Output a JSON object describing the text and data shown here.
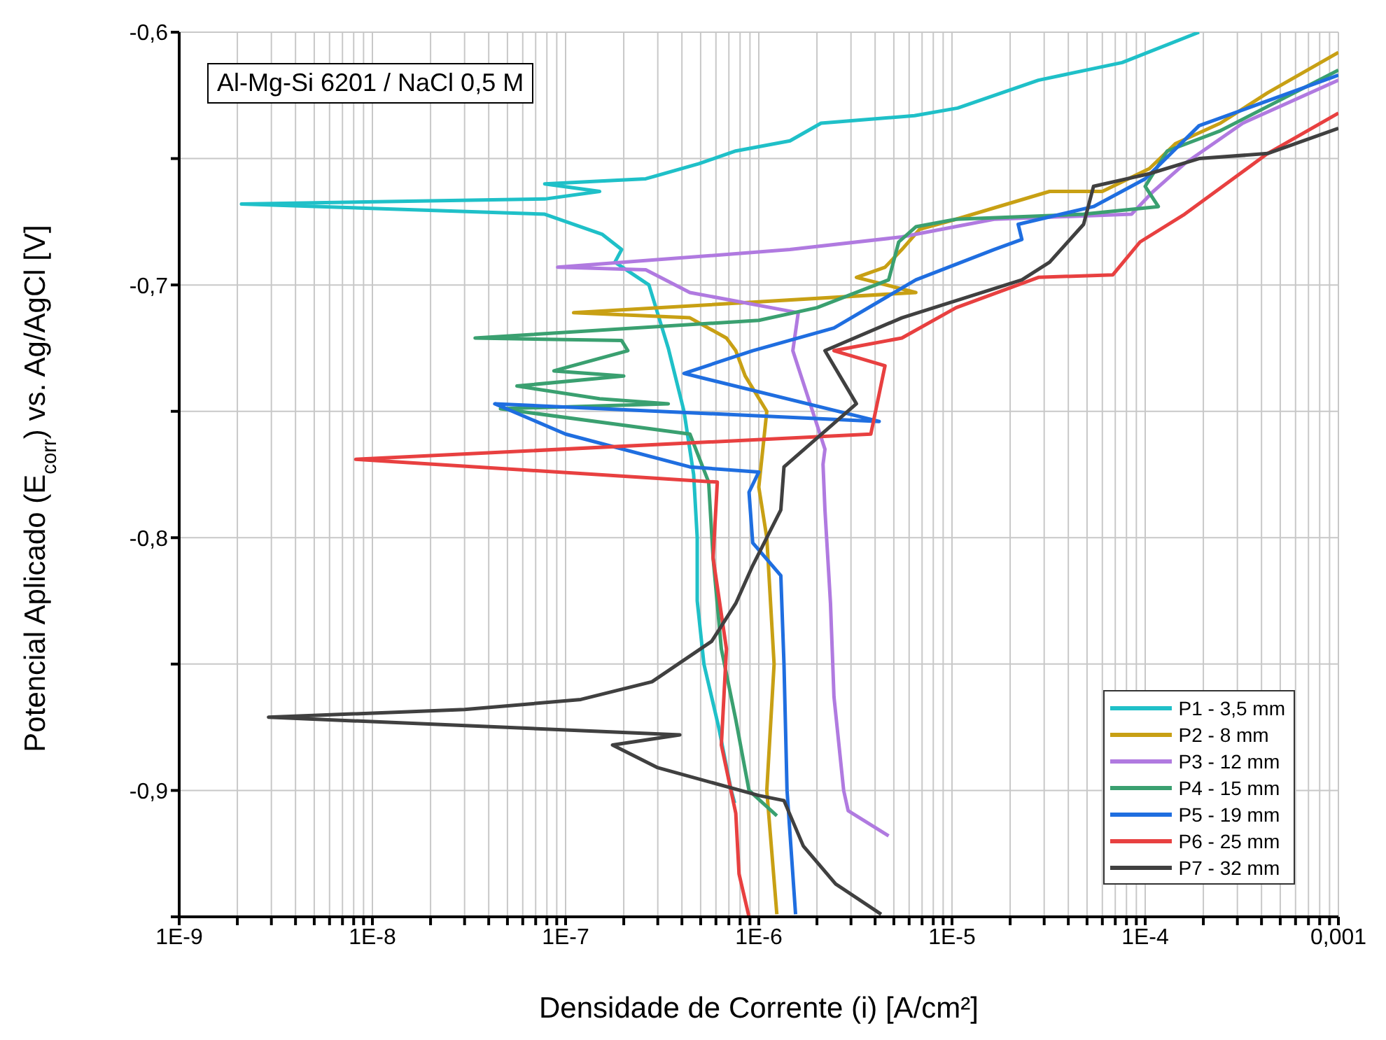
{
  "chart_data": {
    "type": "line",
    "xlabel": "Densidade de Corrente (i) [A/cm²]",
    "ylabel": "Potencial Aplicado (E$_{corr}$) vs. Ag/AgCl [V]",
    "annotations": [
      "Al-Mg-Si 6201 / NaCl 0,5 M"
    ],
    "log": "x",
    "grid": true,
    "legend": "bottom right",
    "marker": "none",
    "line_style": "solid",
    "xlim": [
      1e-09,
      0.001
    ],
    "ylim": [
      -0.95,
      -0.6
    ],
    "xticks": [
      {
        "value": 1e-09,
        "label": "1E-9"
      },
      {
        "value": 2e-09,
        "label": null
      },
      {
        "value": 3e-09,
        "label": null
      },
      {
        "value": 4e-09,
        "label": null
      },
      {
        "value": 5e-09,
        "label": null
      },
      {
        "value": 6e-09,
        "label": null
      },
      {
        "value": 7e-09,
        "label": null
      },
      {
        "value": 8e-09,
        "label": null
      },
      {
        "value": 9e-09,
        "label": null
      },
      {
        "value": 1e-08,
        "label": "1E-8"
      },
      {
        "value": 2e-08,
        "label": null
      },
      {
        "value": 3e-08,
        "label": null
      },
      {
        "value": 4e-08,
        "label": null
      },
      {
        "value": 5e-08,
        "label": null
      },
      {
        "value": 6e-08,
        "label": null
      },
      {
        "value": 7e-08,
        "label": null
      },
      {
        "value": 8e-08,
        "label": null
      },
      {
        "value": 9e-08,
        "label": null
      },
      {
        "value": 1e-07,
        "label": "1E-7"
      },
      {
        "value": 2e-07,
        "label": null
      },
      {
        "value": 3e-07,
        "label": null
      },
      {
        "value": 4e-07,
        "label": null
      },
      {
        "value": 5e-07,
        "label": null
      },
      {
        "value": 6e-07,
        "label": null
      },
      {
        "value": 7e-07,
        "label": null
      },
      {
        "value": 8e-07,
        "label": null
      },
      {
        "value": 9e-07,
        "label": null
      },
      {
        "value": 1e-06,
        "label": "1E-6"
      },
      {
        "value": 2e-06,
        "label": null
      },
      {
        "value": 3e-06,
        "label": null
      },
      {
        "value": 4e-06,
        "label": null
      },
      {
        "value": 5e-06,
        "label": null
      },
      {
        "value": 6e-06,
        "label": null
      },
      {
        "value": 7e-06,
        "label": null
      },
      {
        "value": 8e-06,
        "label": null
      },
      {
        "value": 9e-06,
        "label": null
      },
      {
        "value": 1e-05,
        "label": "1E-5"
      },
      {
        "value": 2e-05,
        "label": null
      },
      {
        "value": 3e-05,
        "label": null
      },
      {
        "value": 4e-05,
        "label": null
      },
      {
        "value": 5e-05,
        "label": null
      },
      {
        "value": 6e-05,
        "label": null
      },
      {
        "value": 7e-05,
        "label": null
      },
      {
        "value": 8e-05,
        "label": null
      },
      {
        "value": 9e-05,
        "label": null
      },
      {
        "value": 0.0001,
        "label": "1E-4"
      },
      {
        "value": 0.0002,
        "label": null
      },
      {
        "value": 0.0003,
        "label": null
      },
      {
        "value": 0.0004,
        "label": null
      },
      {
        "value": 0.0005,
        "label": null
      },
      {
        "value": 0.0006,
        "label": null
      },
      {
        "value": 0.0007,
        "label": null
      },
      {
        "value": 0.0008,
        "label": null
      },
      {
        "value": 0.0009,
        "label": null
      },
      {
        "value": 0.001,
        "label": "0,001"
      }
    ],
    "yticks": [
      {
        "value": -0.95,
        "label": null
      },
      {
        "value": -0.9,
        "label": "-0,9"
      },
      {
        "value": -0.85,
        "label": null
      },
      {
        "value": -0.8,
        "label": "-0,8"
      },
      {
        "value": -0.75,
        "label": null
      },
      {
        "value": -0.7,
        "label": "-0,7"
      },
      {
        "value": -0.65,
        "label": null
      },
      {
        "value": -0.6,
        "label": "-0,6"
      }
    ],
    "series": [
      {
        "name": "P1 - 3,5 mm",
        "color": "#1fc0c8",
        "x": [
          7.5e-07,
          7.2e-07,
          6.2e-07,
          5.2e-07,
          4.8e-07,
          4.8e-07,
          4.6e-07,
          4.1e-07,
          3.4e-07,
          2.7e-07,
          1.8e-07,
          1.95e-07,
          1.55e-07,
          7.8e-08,
          2.1e-09,
          7.8e-08,
          1.5e-07,
          7.8e-08,
          2.6e-07,
          4.9e-07,
          7.6e-07,
          1.45e-06,
          2.1e-06,
          6.4e-06,
          1.07e-05,
          2.8e-05,
          7.6e-05,
          0.00019
        ],
        "values": [
          -0.905,
          -0.9,
          -0.875,
          -0.85,
          -0.825,
          -0.8,
          -0.775,
          -0.75,
          -0.725,
          -0.7,
          -0.691,
          -0.686,
          -0.68,
          -0.672,
          -0.668,
          -0.666,
          -0.663,
          -0.66,
          -0.658,
          -0.652,
          -0.647,
          -0.643,
          -0.636,
          -0.633,
          -0.63,
          -0.619,
          -0.612,
          -0.6
        ]
      },
      {
        "name": "P2 - 8 mm",
        "color": "#c8a014",
        "x": [
          1.24e-06,
          1.1e-06,
          1.2e-06,
          1.1e-06,
          1e-06,
          1.1e-06,
          8.5e-07,
          7.6e-07,
          6.8e-07,
          4.4e-07,
          1.1e-07,
          6.5e-06,
          3.2e-06,
          4.5e-06,
          5.5e-06,
          6.8e-06,
          1.05e-05,
          3.2e-05,
          6e-05,
          0.000105,
          0.000144,
          0.000245,
          0.00043,
          0.001
        ],
        "values": [
          -0.949,
          -0.9,
          -0.85,
          -0.8,
          -0.78,
          -0.75,
          -0.736,
          -0.726,
          -0.721,
          -0.713,
          -0.711,
          -0.703,
          -0.697,
          -0.693,
          -0.686,
          -0.678,
          -0.674,
          -0.663,
          -0.663,
          -0.654,
          -0.644,
          -0.636,
          -0.624,
          -0.608
        ]
      },
      {
        "name": "P3 - 12 mm",
        "color": "#b07ae0",
        "x": [
          4.7e-06,
          2.9e-06,
          2.75e-06,
          2.45e-06,
          2.35e-06,
          2.2e-06,
          2.15e-06,
          2.2e-06,
          1.5e-06,
          1.6e-06,
          4.4e-07,
          2.6e-07,
          9.1e-08,
          1.45e-06,
          5.5e-06,
          1.65e-05,
          8.5e-05,
          0.00011,
          0.00016,
          0.00032,
          0.001
        ],
        "values": [
          -0.918,
          -0.908,
          -0.9,
          -0.863,
          -0.826,
          -0.789,
          -0.771,
          -0.765,
          -0.726,
          -0.711,
          -0.703,
          -0.694,
          -0.693,
          -0.686,
          -0.681,
          -0.674,
          -0.672,
          -0.663,
          -0.652,
          -0.636,
          -0.619
        ]
      },
      {
        "name": "P4 - 15 mm",
        "color": "#3aa070",
        "x": [
          1.24e-06,
          8.9e-07,
          7.6e-07,
          6.4e-07,
          5.8e-07,
          5.5e-07,
          4.4e-07,
          4.6e-08,
          3.4e-07,
          1.5e-07,
          5.6e-08,
          2e-07,
          8.7e-08,
          2.1e-07,
          1.95e-07,
          3.4e-08,
          1e-06,
          2e-06,
          4.7e-06,
          5.3e-06,
          6.5e-06,
          1.05e-05,
          4.8e-05,
          0.000117,
          0.0001,
          0.00013,
          0.000245,
          0.001
        ],
        "values": [
          -0.91,
          -0.9,
          -0.872,
          -0.844,
          -0.808,
          -0.778,
          -0.759,
          -0.749,
          -0.747,
          -0.745,
          -0.74,
          -0.736,
          -0.734,
          -0.726,
          -0.722,
          -0.721,
          -0.714,
          -0.709,
          -0.698,
          -0.683,
          -0.677,
          -0.674,
          -0.672,
          -0.669,
          -0.661,
          -0.647,
          -0.639,
          -0.615
        ]
      },
      {
        "name": "P5 - 19 mm",
        "color": "#1f6ee0",
        "x": [
          1.55e-06,
          1.4e-06,
          1.35e-06,
          1.3e-06,
          9.3e-07,
          8.9e-07,
          1e-06,
          4.4e-07,
          1e-07,
          4.3e-08,
          4.2e-06,
          4.1e-07,
          9.3e-07,
          2.45e-06,
          6.5e-06,
          1.65e-05,
          2.3e-05,
          2.2e-05,
          5.4e-05,
          0.0001,
          0.00019,
          0.001
        ],
        "values": [
          -0.949,
          -0.9,
          -0.85,
          -0.815,
          -0.802,
          -0.782,
          -0.774,
          -0.772,
          -0.759,
          -0.747,
          -0.754,
          -0.735,
          -0.726,
          -0.717,
          -0.698,
          -0.686,
          -0.682,
          -0.676,
          -0.669,
          -0.658,
          -0.637,
          -0.617
        ]
      },
      {
        "name": "P6 - 25 mm",
        "color": "#e84040",
        "x": [
          8.9e-07,
          7.9e-07,
          7.6e-07,
          6.4e-07,
          6.8e-07,
          5.8e-07,
          6.1e-07,
          8.2e-09,
          3.8e-06,
          4.5e-06,
          2.45e-06,
          5.5e-06,
          1.05e-05,
          2.8e-05,
          6.8e-05,
          9.4e-05,
          0.00016,
          0.00043,
          0.001
        ],
        "values": [
          -0.95,
          -0.933,
          -0.909,
          -0.882,
          -0.844,
          -0.808,
          -0.778,
          -0.769,
          -0.759,
          -0.732,
          -0.726,
          -0.721,
          -0.709,
          -0.697,
          -0.696,
          -0.683,
          -0.672,
          -0.648,
          -0.632
        ]
      },
      {
        "name": "P7 - 32 mm",
        "color": "#404040",
        "x": [
          4.3e-06,
          2.5e-06,
          1.7e-06,
          1.35e-06,
          1e-06,
          3e-07,
          1.75e-07,
          3.9e-07,
          2.9e-09,
          3e-08,
          1.2e-07,
          2.8e-07,
          5.7e-07,
          7.6e-07,
          9.3e-07,
          1.3e-06,
          1.35e-06,
          3.2e-06,
          2.2e-06,
          5.5e-06,
          2.3e-05,
          3.2e-05,
          4.8e-05,
          5.4e-05,
          0.000105,
          0.00019,
          0.00043,
          0.001
        ],
        "values": [
          -0.949,
          -0.937,
          -0.922,
          -0.904,
          -0.902,
          -0.891,
          -0.882,
          -0.878,
          -0.871,
          -0.868,
          -0.864,
          -0.857,
          -0.841,
          -0.826,
          -0.811,
          -0.789,
          -0.772,
          -0.747,
          -0.726,
          -0.713,
          -0.698,
          -0.691,
          -0.676,
          -0.661,
          -0.656,
          -0.65,
          -0.648,
          -0.638
        ]
      }
    ]
  }
}
